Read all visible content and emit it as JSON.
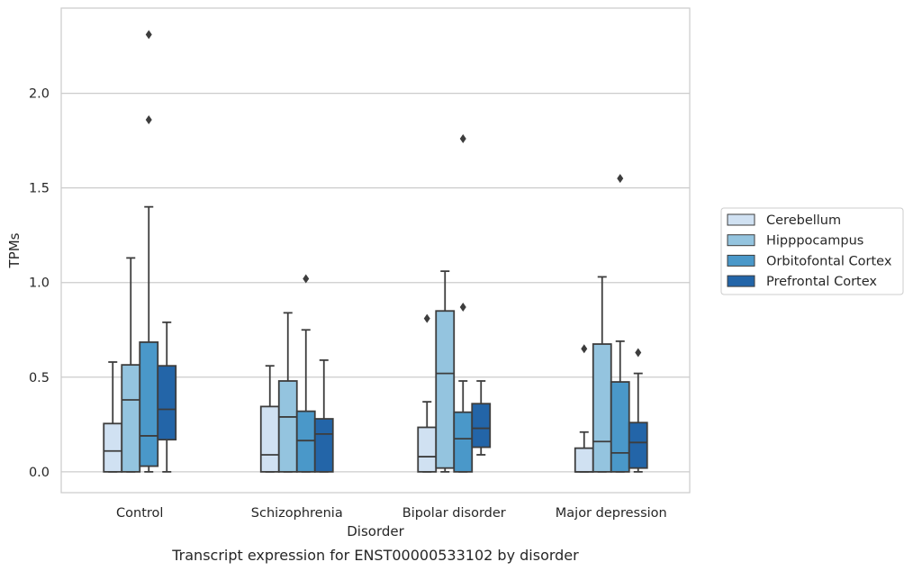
{
  "caption": "Transcript expression for ENST00000533102 by disorder",
  "chart_data": {
    "type": "box",
    "xlabel": "Disorder",
    "ylabel": "TPMs",
    "ylim": [
      -0.11,
      2.45
    ],
    "yticks": [
      0.0,
      0.5,
      1.0,
      1.5,
      2.0
    ],
    "ytick_labels": [
      "0.0",
      "0.5",
      "1.0",
      "1.5",
      "2.0"
    ],
    "grid": "horizontal",
    "legend_position": "right",
    "categories": [
      "Control",
      "Schizophrenia",
      "Bipolar disorder",
      "Major depression"
    ],
    "series": [
      {
        "name": "Cerebellum",
        "color": "#d0e1f2",
        "boxes": [
          {
            "whislo": 0.0,
            "q1": 0.0,
            "med": 0.11,
            "q3": 0.255,
            "whishi": 0.58,
            "fliers": []
          },
          {
            "whislo": 0.0,
            "q1": 0.0,
            "med": 0.09,
            "q3": 0.345,
            "whishi": 0.56,
            "fliers": []
          },
          {
            "whislo": 0.0,
            "q1": 0.0,
            "med": 0.08,
            "q3": 0.235,
            "whishi": 0.37,
            "fliers": [
              0.81
            ]
          },
          {
            "whislo": 0.0,
            "q1": 0.0,
            "med": 0.0,
            "q3": 0.125,
            "whishi": 0.21,
            "fliers": [
              0.65
            ]
          }
        ]
      },
      {
        "name": "Hipppocampus",
        "color": "#94c4df",
        "boxes": [
          {
            "whislo": 0.0,
            "q1": 0.0,
            "med": 0.38,
            "q3": 0.565,
            "whishi": 1.13,
            "fliers": []
          },
          {
            "whislo": 0.0,
            "q1": 0.0,
            "med": 0.29,
            "q3": 0.48,
            "whishi": 0.84,
            "fliers": []
          },
          {
            "whislo": 0.0,
            "q1": 0.02,
            "med": 0.52,
            "q3": 0.85,
            "whishi": 1.06,
            "fliers": []
          },
          {
            "whislo": 0.0,
            "q1": 0.0,
            "med": 0.16,
            "q3": 0.675,
            "whishi": 1.03,
            "fliers": []
          }
        ]
      },
      {
        "name": "Orbitofontal Cortex",
        "color": "#4a98c9",
        "boxes": [
          {
            "whislo": 0.0,
            "q1": 0.03,
            "med": 0.19,
            "q3": 0.685,
            "whishi": 1.4,
            "fliers": [
              1.86,
              2.31
            ]
          },
          {
            "whislo": 0.0,
            "q1": 0.0,
            "med": 0.165,
            "q3": 0.32,
            "whishi": 0.75,
            "fliers": [
              1.02
            ]
          },
          {
            "whislo": 0.0,
            "q1": 0.0,
            "med": 0.175,
            "q3": 0.315,
            "whishi": 0.48,
            "fliers": [
              0.87,
              1.76
            ]
          },
          {
            "whislo": 0.0,
            "q1": 0.0,
            "med": 0.1,
            "q3": 0.475,
            "whishi": 0.69,
            "fliers": [
              1.55
            ]
          }
        ]
      },
      {
        "name": "Prefrontal Cortex",
        "color": "#2365a8",
        "boxes": [
          {
            "whislo": 0.0,
            "q1": 0.17,
            "med": 0.33,
            "q3": 0.56,
            "whishi": 0.79,
            "fliers": []
          },
          {
            "whislo": 0.0,
            "q1": 0.0,
            "med": 0.2,
            "q3": 0.28,
            "whishi": 0.59,
            "fliers": []
          },
          {
            "whislo": 0.09,
            "q1": 0.13,
            "med": 0.23,
            "q3": 0.36,
            "whishi": 0.48,
            "fliers": []
          },
          {
            "whislo": 0.0,
            "q1": 0.02,
            "med": 0.155,
            "q3": 0.26,
            "whishi": 0.52,
            "fliers": [
              0.63
            ]
          }
        ]
      }
    ]
  }
}
